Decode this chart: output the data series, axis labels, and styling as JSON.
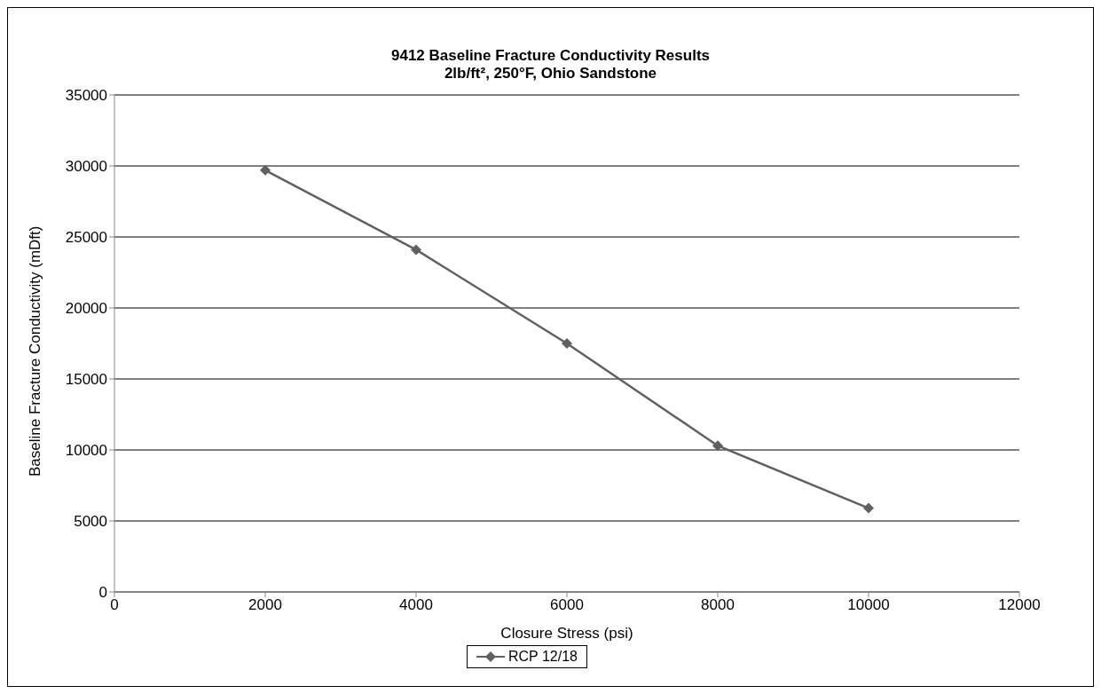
{
  "chart_data": {
    "type": "line",
    "title": "9412 Baseline Fracture Conductivity Results",
    "subtitle": "2lb/ft², 250°F, Ohio Sandstone",
    "xlabel": "Closure Stress (psi)",
    "ylabel": "Baseline Fracture Conductivity (mDft)",
    "x": [
      2000,
      4000,
      6000,
      8000,
      10000
    ],
    "series": [
      {
        "name": "RCP 12/18",
        "color": "#606060",
        "values": [
          29700,
          24100,
          17500,
          10300,
          5900
        ]
      }
    ],
    "xlim": [
      0,
      12000
    ],
    "xticks": [
      0,
      2000,
      4000,
      6000,
      8000,
      10000,
      12000
    ],
    "ylim": [
      0,
      35000
    ],
    "yticks": [
      0,
      5000,
      10000,
      15000,
      20000,
      25000,
      30000,
      35000
    ],
    "grid": "y",
    "legend": "bottom",
    "marker": "diamond",
    "line_style": "solid"
  }
}
